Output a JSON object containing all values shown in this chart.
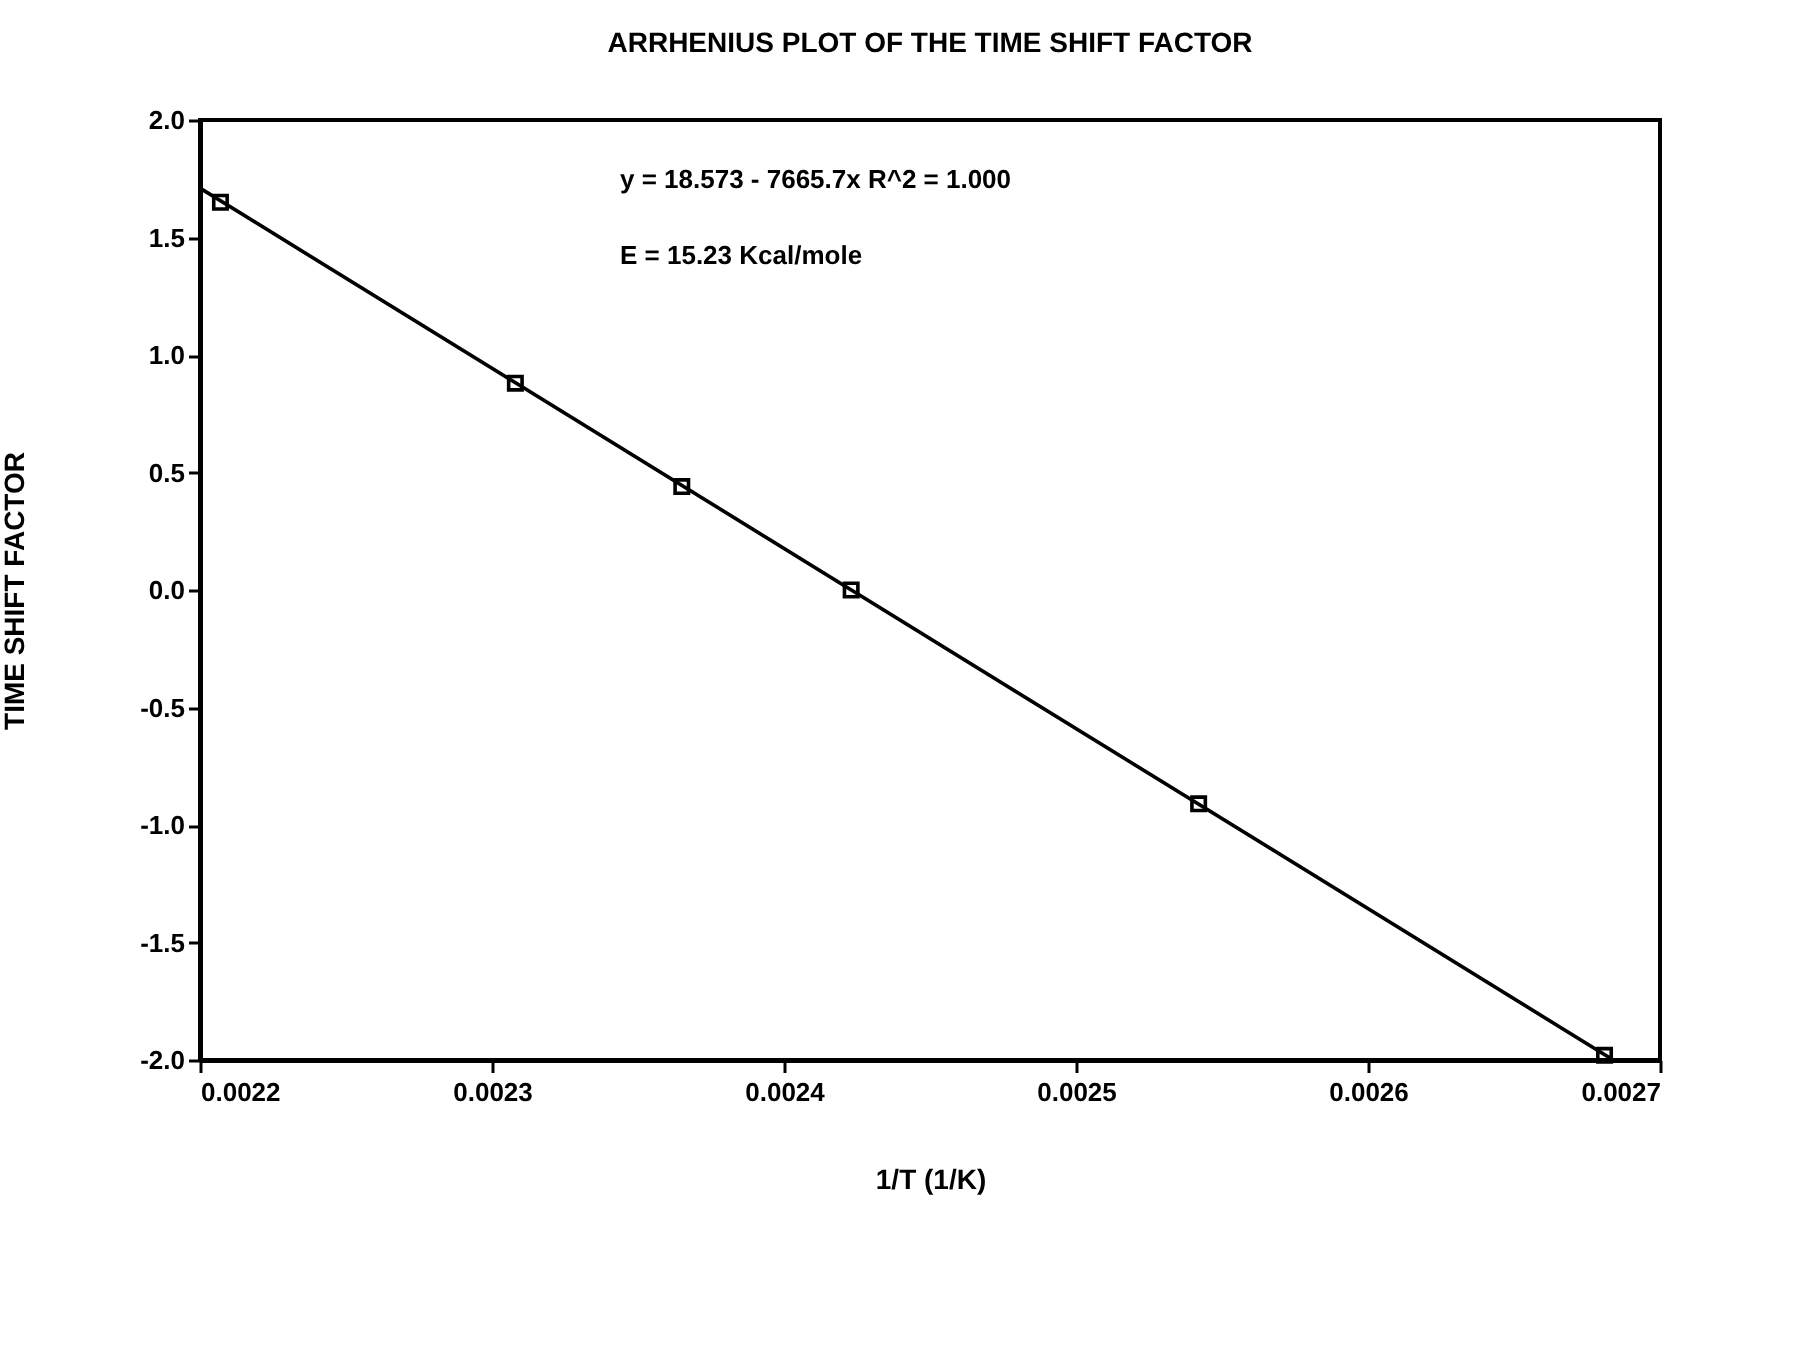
{
  "chart_data": {
    "type": "scatter",
    "title": "ARRHENIUS PLOT OF THE TIME SHIFT FACTOR",
    "xlabel": "1/T (1/K)",
    "ylabel": "TIME  SHIFT  FACTOR",
    "annotations": [
      "y = 18.573 - 7665.7x   R^2 = 1.000",
      "E = 15.23 Kcal/mole"
    ],
    "series": [
      {
        "color": "#000000",
        "marker": "square",
        "x": [
          0.002207,
          0.002308,
          0.002365,
          0.002423,
          0.002542,
          0.002681
        ],
        "values": [
          1.65,
          0.88,
          0.44,
          0.0,
          -0.91,
          -1.98
        ]
      },
      {
        "type": "line",
        "color": "#000000",
        "marker": "none",
        "x": [
          0.0022,
          0.002684
        ],
        "values": [
          1.71,
          -2.0
        ]
      }
    ],
    "xlim": [
      0.0022,
      0.0027
    ],
    "xticks": [
      {
        "value": 0.0022,
        "label": "0.0022"
      },
      {
        "value": 0.0023,
        "label": "0.0023"
      },
      {
        "value": 0.0024,
        "label": "0.0024"
      },
      {
        "value": 0.0025,
        "label": "0.0025"
      },
      {
        "value": 0.0026,
        "label": "0.0026"
      },
      {
        "value": 0.0027,
        "label": "0.0027"
      }
    ],
    "ylim": [
      -2.0,
      2.0
    ],
    "yticks": [
      {
        "value": -2,
        "label": "-2.0"
      },
      {
        "value": -1.5,
        "label": "-1.5"
      },
      {
        "value": -1,
        "label": "-1.0"
      },
      {
        "value": -0.5,
        "label": "-0.5"
      },
      {
        "value": 0,
        "label": "0.0"
      },
      {
        "value": 0.5,
        "label": "0.5"
      },
      {
        "value": 1,
        "label": "1.0"
      },
      {
        "value": 1.5,
        "label": "1.5"
      },
      {
        "value": 2,
        "label": "2.0"
      }
    ],
    "grid": false
  }
}
